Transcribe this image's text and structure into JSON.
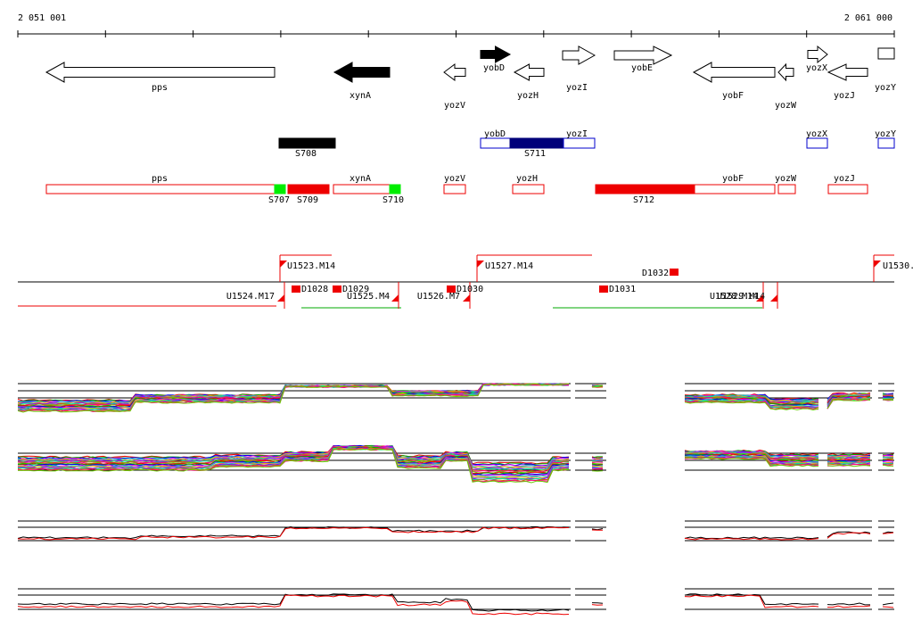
{
  "axis": {
    "start_label": "2 051 001",
    "end_label": "2 061 000"
  },
  "genes": [
    "pps",
    "xynA",
    "yozV",
    "yobD",
    "yozH",
    "yozI",
    "yobE",
    "yobF",
    "yozW",
    "yozX",
    "yozJ",
    "yozY"
  ],
  "transcripts": [
    "S708",
    "yobD",
    "S711",
    "yozI",
    "yozX",
    "yozY"
  ],
  "segments": [
    "pps",
    "S707",
    "S709",
    "xynA",
    "S710",
    "yozV",
    "yozH",
    "S712",
    "yobF",
    "yozW",
    "yozJ"
  ],
  "probes": [
    "U1523.M14",
    "U1527.M14",
    "D1032",
    "U1530.",
    "U1524.M17",
    "D1028",
    "D1029",
    "U1525.M4",
    "U1526.M7",
    "D1030",
    "D1031",
    "U1528.M14",
    "U1529.M14"
  ]
}
